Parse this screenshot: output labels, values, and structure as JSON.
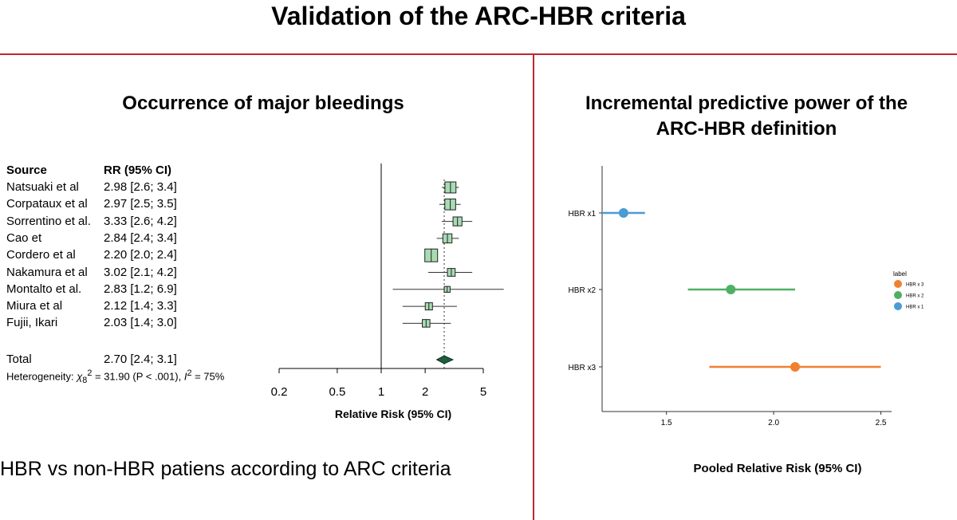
{
  "title": "Validation of the ARC-HBR criteria",
  "left_panel": {
    "title": "Occurrence of major bleedings",
    "caption": "HBR vs non-HBR patiens according to ARC criteria"
  },
  "right_panel": {
    "title_line1": "Incremental predictive power of the",
    "title_line2": "ARC-HBR definition"
  },
  "colors": {
    "divider": "#c0262d",
    "box_fill": "#a8dbb4",
    "diamond": "#1f5e3d",
    "hbr_x1": "#4a9cd3",
    "hbr_x2": "#4fb064",
    "hbr_x3": "#f08030"
  },
  "chart_data": [
    {
      "type": "forest",
      "column_headers": {
        "source": "Source",
        "rr": "RR (95% CI)"
      },
      "xlabel": "Relative Risk (95% CI)",
      "x_scale": "log",
      "x_ticks": [
        0.2,
        0.5,
        1,
        2,
        5
      ],
      "x_tick_labels": [
        "0.2",
        "0.5",
        "1",
        "2",
        "5"
      ],
      "studies": [
        {
          "source": "Natsuaki et al",
          "rr_text": "2.98 [2.6; 3.4]",
          "rr": 2.98,
          "lo": 2.6,
          "hi": 3.4,
          "weight": 0.82
        },
        {
          "source": "Corpataux et al",
          "rr_text": "2.97 [2.5; 3.5]",
          "rr": 2.97,
          "lo": 2.5,
          "hi": 3.5,
          "weight": 0.8
        },
        {
          "source": "Sorrentino et al.",
          "rr_text": "3.33 [2.6; 4.2]",
          "rr": 3.33,
          "lo": 2.6,
          "hi": 4.2,
          "weight": 0.6
        },
        {
          "source": "Cao et",
          "rr_text": "2.84 [2.4; 3.4]",
          "rr": 2.84,
          "lo": 2.4,
          "hi": 3.4,
          "weight": 0.62
        },
        {
          "source": "Cordero et al",
          "rr_text": "2.20 [2.0; 2.4]",
          "rr": 2.2,
          "lo": 2.0,
          "hi": 2.4,
          "weight": 1.0
        },
        {
          "source": "Nakamura et al",
          "rr_text": "3.02 [2.1; 4.2]",
          "rr": 3.02,
          "lo": 2.1,
          "hi": 4.2,
          "weight": 0.48
        },
        {
          "source": "Montalto et al.",
          "rr_text": "2.83 [1.2; 6.9]",
          "rr": 2.83,
          "lo": 1.2,
          "hi": 6.9,
          "weight": 0.28
        },
        {
          "source": "Miura et al",
          "rr_text": "2.12 [1.4; 3.3]",
          "rr": 2.12,
          "lo": 1.4,
          "hi": 3.3,
          "weight": 0.42
        },
        {
          "source": "Fujii, Ikari",
          "rr_text": "2.03 [1.4; 3.0]",
          "rr": 2.03,
          "lo": 1.4,
          "hi": 3.0,
          "weight": 0.46
        }
      ],
      "total": {
        "label": "Total",
        "rr_text": "2.70 [2.4; 3.1]",
        "rr": 2.7,
        "lo": 2.4,
        "hi": 3.1
      },
      "heterogeneity": {
        "label": "Heterogeneity:",
        "chi2_sub": "8",
        "chi2": "31.90",
        "p": "(P < .001)",
        "i2": "75%"
      }
    },
    {
      "type": "dot-interval",
      "xlabel": "Pooled Relative Risk (95% CI)",
      "xlim": [
        1.2,
        2.55
      ],
      "x_ticks": [
        1.5,
        2.0,
        2.5
      ],
      "x_tick_labels": [
        "1.5",
        "2.0",
        "2.5"
      ],
      "categories": [
        "HBR x1",
        "HBR x2",
        "HBR x3"
      ],
      "points": [
        {
          "category": "HBR x1",
          "value": 1.3,
          "lo": 1.2,
          "hi": 1.4,
          "color": "#4a9cd3"
        },
        {
          "category": "HBR x2",
          "value": 1.8,
          "lo": 1.6,
          "hi": 2.1,
          "color": "#4fb064"
        },
        {
          "category": "HBR x3",
          "value": 2.1,
          "lo": 1.7,
          "hi": 2.5,
          "color": "#f08030"
        }
      ],
      "legend": {
        "title": "label",
        "placement": "right",
        "items": [
          {
            "label": "HBR x 3",
            "color": "#f08030"
          },
          {
            "label": "HBR x 2",
            "color": "#4fb064"
          },
          {
            "label": "HBR x 1",
            "color": "#4a9cd3"
          }
        ]
      }
    }
  ]
}
